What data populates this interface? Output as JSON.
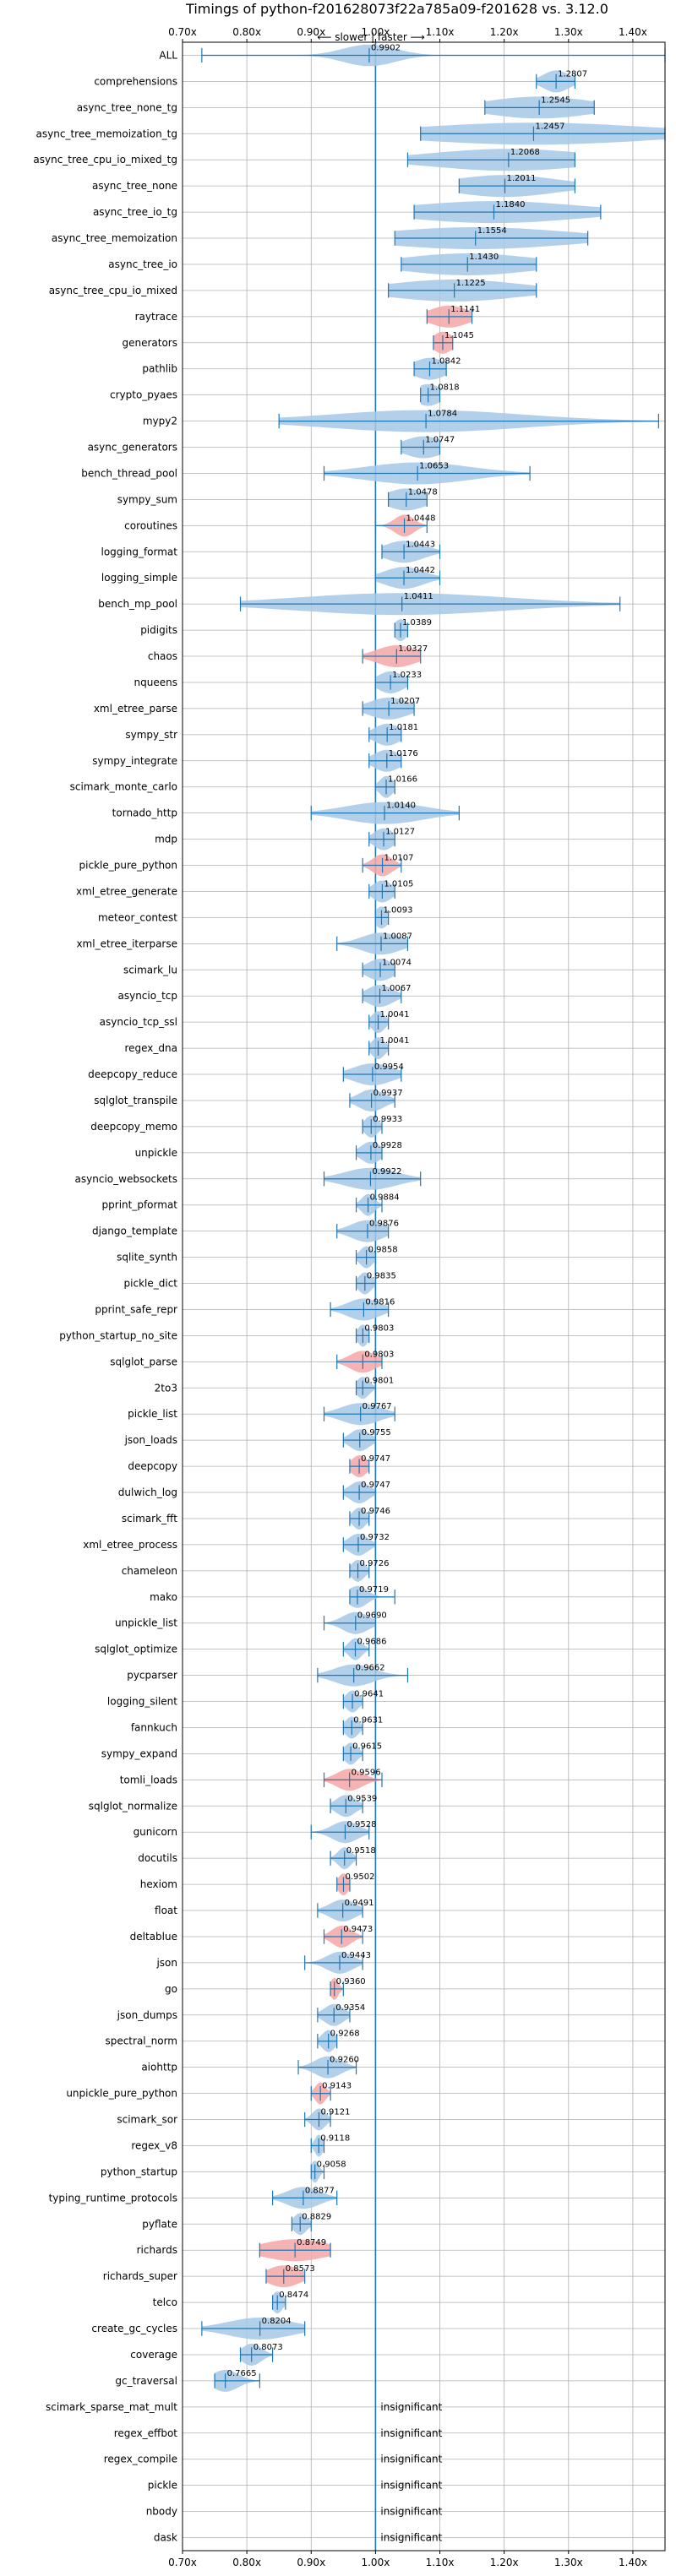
{
  "chart_data": {
    "type": "violin",
    "title": "Timings of python-f201628073f22a785a09-f201628 vs. 3.12.0",
    "direction_label": "⟵ slower | faster ⟶",
    "xlim": [
      0.7,
      1.45
    ],
    "xticks": [
      0.7,
      0.8,
      0.9,
      1.0,
      1.1,
      1.2,
      1.3,
      1.4
    ],
    "xtick_labels": [
      "0.70x",
      "0.80x",
      "0.90x",
      "1.00x",
      "1.10x",
      "1.20x",
      "1.30x",
      "1.40x"
    ],
    "reference": 1.0,
    "grid": true,
    "colors": {
      "normal": "#a6c8e6",
      "significant": "#f4a6a6",
      "line": "#1f77b4",
      "grid": "#b0b0b0"
    },
    "insignificant_label": "insignificant",
    "benchmarks": [
      {
        "name": "ALL",
        "value": 0.9902,
        "label": "0.9902",
        "lo": 0.73,
        "hi": 1.45,
        "spread": 0.04,
        "hl": false
      },
      {
        "name": "comprehensions",
        "value": 1.2807,
        "label": "1.2807",
        "lo": 1.25,
        "hi": 1.31,
        "spread": 0.02,
        "hl": false
      },
      {
        "name": "async_tree_none_tg",
        "value": 1.2545,
        "label": "1.2545",
        "lo": 1.17,
        "hi": 1.34,
        "spread": 0.08,
        "hl": false
      },
      {
        "name": "async_tree_memoization_tg",
        "value": 1.2457,
        "label": "1.2457",
        "lo": 1.07,
        "hi": 1.45,
        "spread": 0.18,
        "hl": false
      },
      {
        "name": "async_tree_cpu_io_mixed_tg",
        "value": 1.2068,
        "label": "1.2068",
        "lo": 1.05,
        "hi": 1.31,
        "spread": 0.12,
        "hl": false
      },
      {
        "name": "async_tree_none",
        "value": 1.2011,
        "label": "1.2011",
        "lo": 1.13,
        "hi": 1.31,
        "spread": 0.08,
        "hl": false
      },
      {
        "name": "async_tree_io_tg",
        "value": 1.184,
        "label": "1.1840",
        "lo": 1.06,
        "hi": 1.35,
        "spread": 0.13,
        "hl": false
      },
      {
        "name": "async_tree_memoization",
        "value": 1.1554,
        "label": "1.1554",
        "lo": 1.03,
        "hi": 1.33,
        "spread": 0.14,
        "hl": false
      },
      {
        "name": "async_tree_io",
        "value": 1.143,
        "label": "1.1430",
        "lo": 1.04,
        "hi": 1.25,
        "spread": 0.1,
        "hl": false
      },
      {
        "name": "async_tree_cpu_io_mixed",
        "value": 1.1225,
        "label": "1.1225",
        "lo": 1.02,
        "hi": 1.25,
        "spread": 0.1,
        "hl": false
      },
      {
        "name": "raytrace",
        "value": 1.1141,
        "label": "1.1141",
        "lo": 1.08,
        "hi": 1.15,
        "spread": 0.03,
        "hl": true
      },
      {
        "name": "generators",
        "value": 1.1045,
        "label": "1.1045",
        "lo": 1.09,
        "hi": 1.12,
        "spread": 0.015,
        "hl": true
      },
      {
        "name": "pathlib",
        "value": 1.0842,
        "label": "1.0842",
        "lo": 1.06,
        "hi": 1.11,
        "spread": 0.025,
        "hl": false
      },
      {
        "name": "crypto_pyaes",
        "value": 1.0818,
        "label": "1.0818",
        "lo": 1.07,
        "hi": 1.1,
        "spread": 0.02,
        "hl": false
      },
      {
        "name": "mypy2",
        "value": 1.0784,
        "label": "1.0784",
        "lo": 0.85,
        "hi": 1.44,
        "spread": 0.15,
        "hl": false
      },
      {
        "name": "async_generators",
        "value": 1.0747,
        "label": "1.0747",
        "lo": 1.04,
        "hi": 1.1,
        "spread": 0.03,
        "hl": false
      },
      {
        "name": "bench_thread_pool",
        "value": 1.0653,
        "label": "1.0653",
        "lo": 0.92,
        "hi": 1.24,
        "spread": 0.08,
        "hl": false
      },
      {
        "name": "sympy_sum",
        "value": 1.0478,
        "label": "1.0478",
        "lo": 1.02,
        "hi": 1.08,
        "spread": 0.03,
        "hl": false
      },
      {
        "name": "coroutines",
        "value": 1.0448,
        "label": "1.0448",
        "lo": 1.0,
        "hi": 1.08,
        "spread": 0.015,
        "hl": true
      },
      {
        "name": "logging_format",
        "value": 1.0443,
        "label": "1.0443",
        "lo": 1.01,
        "hi": 1.1,
        "spread": 0.03,
        "hl": false
      },
      {
        "name": "logging_simple",
        "value": 1.0442,
        "label": "1.0442",
        "lo": 1.0,
        "hi": 1.1,
        "spread": 0.03,
        "hl": false
      },
      {
        "name": "bench_mp_pool",
        "value": 1.0411,
        "label": "1.0411",
        "lo": 0.79,
        "hi": 1.38,
        "spread": 0.16,
        "hl": false
      },
      {
        "name": "pidigits",
        "value": 1.0389,
        "label": "1.0389",
        "lo": 1.03,
        "hi": 1.05,
        "spread": 0.01,
        "hl": false
      },
      {
        "name": "chaos",
        "value": 1.0327,
        "label": "1.0327",
        "lo": 0.98,
        "hi": 1.07,
        "spread": 0.03,
        "hl": true
      },
      {
        "name": "nqueens",
        "value": 1.0233,
        "label": "1.0233",
        "lo": 1.0,
        "hi": 1.05,
        "spread": 0.02,
        "hl": false
      },
      {
        "name": "xml_etree_parse",
        "value": 1.0207,
        "label": "1.0207",
        "lo": 0.98,
        "hi": 1.06,
        "spread": 0.03,
        "hl": false
      },
      {
        "name": "sympy_str",
        "value": 1.0181,
        "label": "1.0181",
        "lo": 0.99,
        "hi": 1.04,
        "spread": 0.02,
        "hl": false
      },
      {
        "name": "sympy_integrate",
        "value": 1.0176,
        "label": "1.0176",
        "lo": 0.99,
        "hi": 1.04,
        "spread": 0.02,
        "hl": false
      },
      {
        "name": "scimark_monte_carlo",
        "value": 1.0166,
        "label": "1.0166",
        "lo": 1.0,
        "hi": 1.03,
        "spread": 0.01,
        "hl": false
      },
      {
        "name": "tornado_http",
        "value": 1.014,
        "label": "1.0140",
        "lo": 0.9,
        "hi": 1.13,
        "spread": 0.06,
        "hl": false
      },
      {
        "name": "mdp",
        "value": 1.0127,
        "label": "1.0127",
        "lo": 0.99,
        "hi": 1.03,
        "spread": 0.015,
        "hl": false
      },
      {
        "name": "pickle_pure_python",
        "value": 1.0107,
        "label": "1.0107",
        "lo": 0.98,
        "hi": 1.04,
        "spread": 0.015,
        "hl": true
      },
      {
        "name": "xml_etree_generate",
        "value": 1.0105,
        "label": "1.0105",
        "lo": 0.99,
        "hi": 1.03,
        "spread": 0.015,
        "hl": false
      },
      {
        "name": "meteor_contest",
        "value": 1.0093,
        "label": "1.0093",
        "lo": 1.0,
        "hi": 1.02,
        "spread": 0.01,
        "hl": false
      },
      {
        "name": "xml_etree_iterparse",
        "value": 1.0087,
        "label": "1.0087",
        "lo": 0.94,
        "hi": 1.05,
        "spread": 0.03,
        "hl": false
      },
      {
        "name": "scimark_lu",
        "value": 1.0074,
        "label": "1.0074",
        "lo": 0.98,
        "hi": 1.03,
        "spread": 0.02,
        "hl": false
      },
      {
        "name": "asyncio_tcp",
        "value": 1.0067,
        "label": "1.0067",
        "lo": 0.98,
        "hi": 1.04,
        "spread": 0.02,
        "hl": false
      },
      {
        "name": "asyncio_tcp_ssl",
        "value": 1.0041,
        "label": "1.0041",
        "lo": 0.99,
        "hi": 1.02,
        "spread": 0.01,
        "hl": false
      },
      {
        "name": "regex_dna",
        "value": 1.0041,
        "label": "1.0041",
        "lo": 0.99,
        "hi": 1.02,
        "spread": 0.01,
        "hl": false
      },
      {
        "name": "deepcopy_reduce",
        "value": 0.9954,
        "label": "0.9954",
        "lo": 0.95,
        "hi": 1.04,
        "spread": 0.03,
        "hl": false
      },
      {
        "name": "sqlglot_transpile",
        "value": 0.9937,
        "label": "0.9937",
        "lo": 0.96,
        "hi": 1.03,
        "spread": 0.02,
        "hl": false
      },
      {
        "name": "deepcopy_memo",
        "value": 0.9933,
        "label": "0.9933",
        "lo": 0.98,
        "hi": 1.01,
        "spread": 0.01,
        "hl": false
      },
      {
        "name": "unpickle",
        "value": 0.9928,
        "label": "0.9928",
        "lo": 0.97,
        "hi": 1.01,
        "spread": 0.015,
        "hl": false
      },
      {
        "name": "asyncio_websockets",
        "value": 0.9922,
        "label": "0.9922",
        "lo": 0.92,
        "hi": 1.07,
        "spread": 0.04,
        "hl": false
      },
      {
        "name": "pprint_pformat",
        "value": 0.9884,
        "label": "0.9884",
        "lo": 0.97,
        "hi": 1.01,
        "spread": 0.01,
        "hl": false
      },
      {
        "name": "django_template",
        "value": 0.9876,
        "label": "0.9876",
        "lo": 0.94,
        "hi": 1.02,
        "spread": 0.025,
        "hl": false
      },
      {
        "name": "sqlite_synth",
        "value": 0.9858,
        "label": "0.9858",
        "lo": 0.97,
        "hi": 1.0,
        "spread": 0.01,
        "hl": false
      },
      {
        "name": "pickle_dict",
        "value": 0.9835,
        "label": "0.9835",
        "lo": 0.97,
        "hi": 1.0,
        "spread": 0.01,
        "hl": false
      },
      {
        "name": "pprint_safe_repr",
        "value": 0.9816,
        "label": "0.9816",
        "lo": 0.93,
        "hi": 1.02,
        "spread": 0.025,
        "hl": false
      },
      {
        "name": "python_startup_no_site",
        "value": 0.9803,
        "label": "0.9803",
        "lo": 0.97,
        "hi": 0.99,
        "spread": 0.008,
        "hl": false
      },
      {
        "name": "sqlglot_parse",
        "value": 0.9803,
        "label": "0.9803",
        "lo": 0.94,
        "hi": 1.01,
        "spread": 0.02,
        "hl": true
      },
      {
        "name": "2to3",
        "value": 0.9801,
        "label": "0.9801",
        "lo": 0.97,
        "hi": 1.0,
        "spread": 0.01,
        "hl": false
      },
      {
        "name": "pickle_list",
        "value": 0.9767,
        "label": "0.9767",
        "lo": 0.92,
        "hi": 1.03,
        "spread": 0.03,
        "hl": false
      },
      {
        "name": "json_loads",
        "value": 0.9755,
        "label": "0.9755",
        "lo": 0.95,
        "hi": 1.0,
        "spread": 0.015,
        "hl": false
      },
      {
        "name": "deepcopy",
        "value": 0.9747,
        "label": "0.9747",
        "lo": 0.96,
        "hi": 0.99,
        "spread": 0.012,
        "hl": true
      },
      {
        "name": "dulwich_log",
        "value": 0.9747,
        "label": "0.9747",
        "lo": 0.95,
        "hi": 1.0,
        "spread": 0.015,
        "hl": false
      },
      {
        "name": "scimark_fft",
        "value": 0.9746,
        "label": "0.9746",
        "lo": 0.96,
        "hi": 0.99,
        "spread": 0.01,
        "hl": false
      },
      {
        "name": "xml_etree_process",
        "value": 0.9732,
        "label": "0.9732",
        "lo": 0.95,
        "hi": 1.0,
        "spread": 0.015,
        "hl": false
      },
      {
        "name": "chameleon",
        "value": 0.9726,
        "label": "0.9726",
        "lo": 0.96,
        "hi": 0.99,
        "spread": 0.01,
        "hl": false
      },
      {
        "name": "mako",
        "value": 0.9719,
        "label": "0.9719",
        "lo": 0.96,
        "hi": 1.03,
        "spread": 0.015,
        "hl": false
      },
      {
        "name": "unpickle_list",
        "value": 0.969,
        "label": "0.9690",
        "lo": 0.92,
        "hi": 1.0,
        "spread": 0.02,
        "hl": false
      },
      {
        "name": "sqlglot_optimize",
        "value": 0.9686,
        "label": "0.9686",
        "lo": 0.95,
        "hi": 0.99,
        "spread": 0.01,
        "hl": false
      },
      {
        "name": "pycparser",
        "value": 0.9662,
        "label": "0.9662",
        "lo": 0.91,
        "hi": 1.05,
        "spread": 0.03,
        "hl": false
      },
      {
        "name": "logging_silent",
        "value": 0.9641,
        "label": "0.9641",
        "lo": 0.95,
        "hi": 0.98,
        "spread": 0.01,
        "hl": false
      },
      {
        "name": "fannkuch",
        "value": 0.9631,
        "label": "0.9631",
        "lo": 0.95,
        "hi": 0.98,
        "spread": 0.01,
        "hl": false
      },
      {
        "name": "sympy_expand",
        "value": 0.9615,
        "label": "0.9615",
        "lo": 0.95,
        "hi": 0.98,
        "spread": 0.01,
        "hl": false
      },
      {
        "name": "tomli_loads",
        "value": 0.9596,
        "label": "0.9596",
        "lo": 0.92,
        "hi": 1.01,
        "spread": 0.02,
        "hl": true
      },
      {
        "name": "sqlglot_normalize",
        "value": 0.9539,
        "label": "0.9539",
        "lo": 0.93,
        "hi": 0.98,
        "spread": 0.015,
        "hl": false
      },
      {
        "name": "gunicorn",
        "value": 0.9528,
        "label": "0.9528",
        "lo": 0.9,
        "hi": 0.99,
        "spread": 0.02,
        "hl": false
      },
      {
        "name": "docutils",
        "value": 0.9518,
        "label": "0.9518",
        "lo": 0.93,
        "hi": 0.97,
        "spread": 0.01,
        "hl": false
      },
      {
        "name": "hexiom",
        "value": 0.9502,
        "label": "0.9502",
        "lo": 0.94,
        "hi": 0.96,
        "spread": 0.008,
        "hl": true
      },
      {
        "name": "float",
        "value": 0.9491,
        "label": "0.9491",
        "lo": 0.91,
        "hi": 0.98,
        "spread": 0.02,
        "hl": false
      },
      {
        "name": "deltablue",
        "value": 0.9473,
        "label": "0.9473",
        "lo": 0.92,
        "hi": 0.98,
        "spread": 0.015,
        "hl": true
      },
      {
        "name": "json",
        "value": 0.9443,
        "label": "0.9443",
        "lo": 0.89,
        "hi": 0.98,
        "spread": 0.02,
        "hl": false
      },
      {
        "name": "go",
        "value": 0.936,
        "label": "0.9360",
        "lo": 0.93,
        "hi": 0.95,
        "spread": 0.006,
        "hl": true
      },
      {
        "name": "json_dumps",
        "value": 0.9354,
        "label": "0.9354",
        "lo": 0.91,
        "hi": 0.96,
        "spread": 0.015,
        "hl": false
      },
      {
        "name": "spectral_norm",
        "value": 0.9268,
        "label": "0.9268",
        "lo": 0.91,
        "hi": 0.94,
        "spread": 0.01,
        "hl": false
      },
      {
        "name": "aiohttp",
        "value": 0.926,
        "label": "0.9260",
        "lo": 0.88,
        "hi": 0.97,
        "spread": 0.02,
        "hl": false
      },
      {
        "name": "unpickle_pure_python",
        "value": 0.9143,
        "label": "0.9143",
        "lo": 0.9,
        "hi": 0.93,
        "spread": 0.008,
        "hl": true
      },
      {
        "name": "scimark_sor",
        "value": 0.9121,
        "label": "0.9121",
        "lo": 0.89,
        "hi": 0.93,
        "spread": 0.01,
        "hl": false
      },
      {
        "name": "regex_v8",
        "value": 0.9118,
        "label": "0.9118",
        "lo": 0.9,
        "hi": 0.92,
        "spread": 0.006,
        "hl": false
      },
      {
        "name": "python_startup",
        "value": 0.9058,
        "label": "0.9058",
        "lo": 0.9,
        "hi": 0.92,
        "spread": 0.006,
        "hl": false
      },
      {
        "name": "typing_runtime_protocols",
        "value": 0.8877,
        "label": "0.8877",
        "lo": 0.84,
        "hi": 0.94,
        "spread": 0.025,
        "hl": false
      },
      {
        "name": "pyflate",
        "value": 0.8829,
        "label": "0.8829",
        "lo": 0.87,
        "hi": 0.9,
        "spread": 0.01,
        "hl": false
      },
      {
        "name": "richards",
        "value": 0.8749,
        "label": "0.8749",
        "lo": 0.82,
        "hi": 0.93,
        "spread": 0.05,
        "hl": true
      },
      {
        "name": "richards_super",
        "value": 0.8573,
        "label": "0.8573",
        "lo": 0.83,
        "hi": 0.89,
        "spread": 0.025,
        "hl": true
      },
      {
        "name": "telco",
        "value": 0.8474,
        "label": "0.8474",
        "lo": 0.84,
        "hi": 0.86,
        "spread": 0.008,
        "hl": false
      },
      {
        "name": "create_gc_cycles",
        "value": 0.8204,
        "label": "0.8204",
        "lo": 0.73,
        "hi": 0.89,
        "spread": 0.05,
        "hl": false
      },
      {
        "name": "coverage",
        "value": 0.8073,
        "label": "0.8073",
        "lo": 0.79,
        "hi": 0.84,
        "spread": 0.015,
        "hl": false
      },
      {
        "name": "gc_traversal",
        "value": 0.7665,
        "label": "0.7665",
        "lo": 0.75,
        "hi": 0.82,
        "spread": 0.02,
        "hl": false
      },
      {
        "name": "scimark_sparse_mat_mult",
        "value": null,
        "label": "insignificant"
      },
      {
        "name": "regex_effbot",
        "value": null,
        "label": "insignificant"
      },
      {
        "name": "regex_compile",
        "value": null,
        "label": "insignificant"
      },
      {
        "name": "pickle",
        "value": null,
        "label": "insignificant"
      },
      {
        "name": "nbody",
        "value": null,
        "label": "insignificant"
      },
      {
        "name": "dask",
        "value": null,
        "label": "insignificant"
      }
    ]
  }
}
